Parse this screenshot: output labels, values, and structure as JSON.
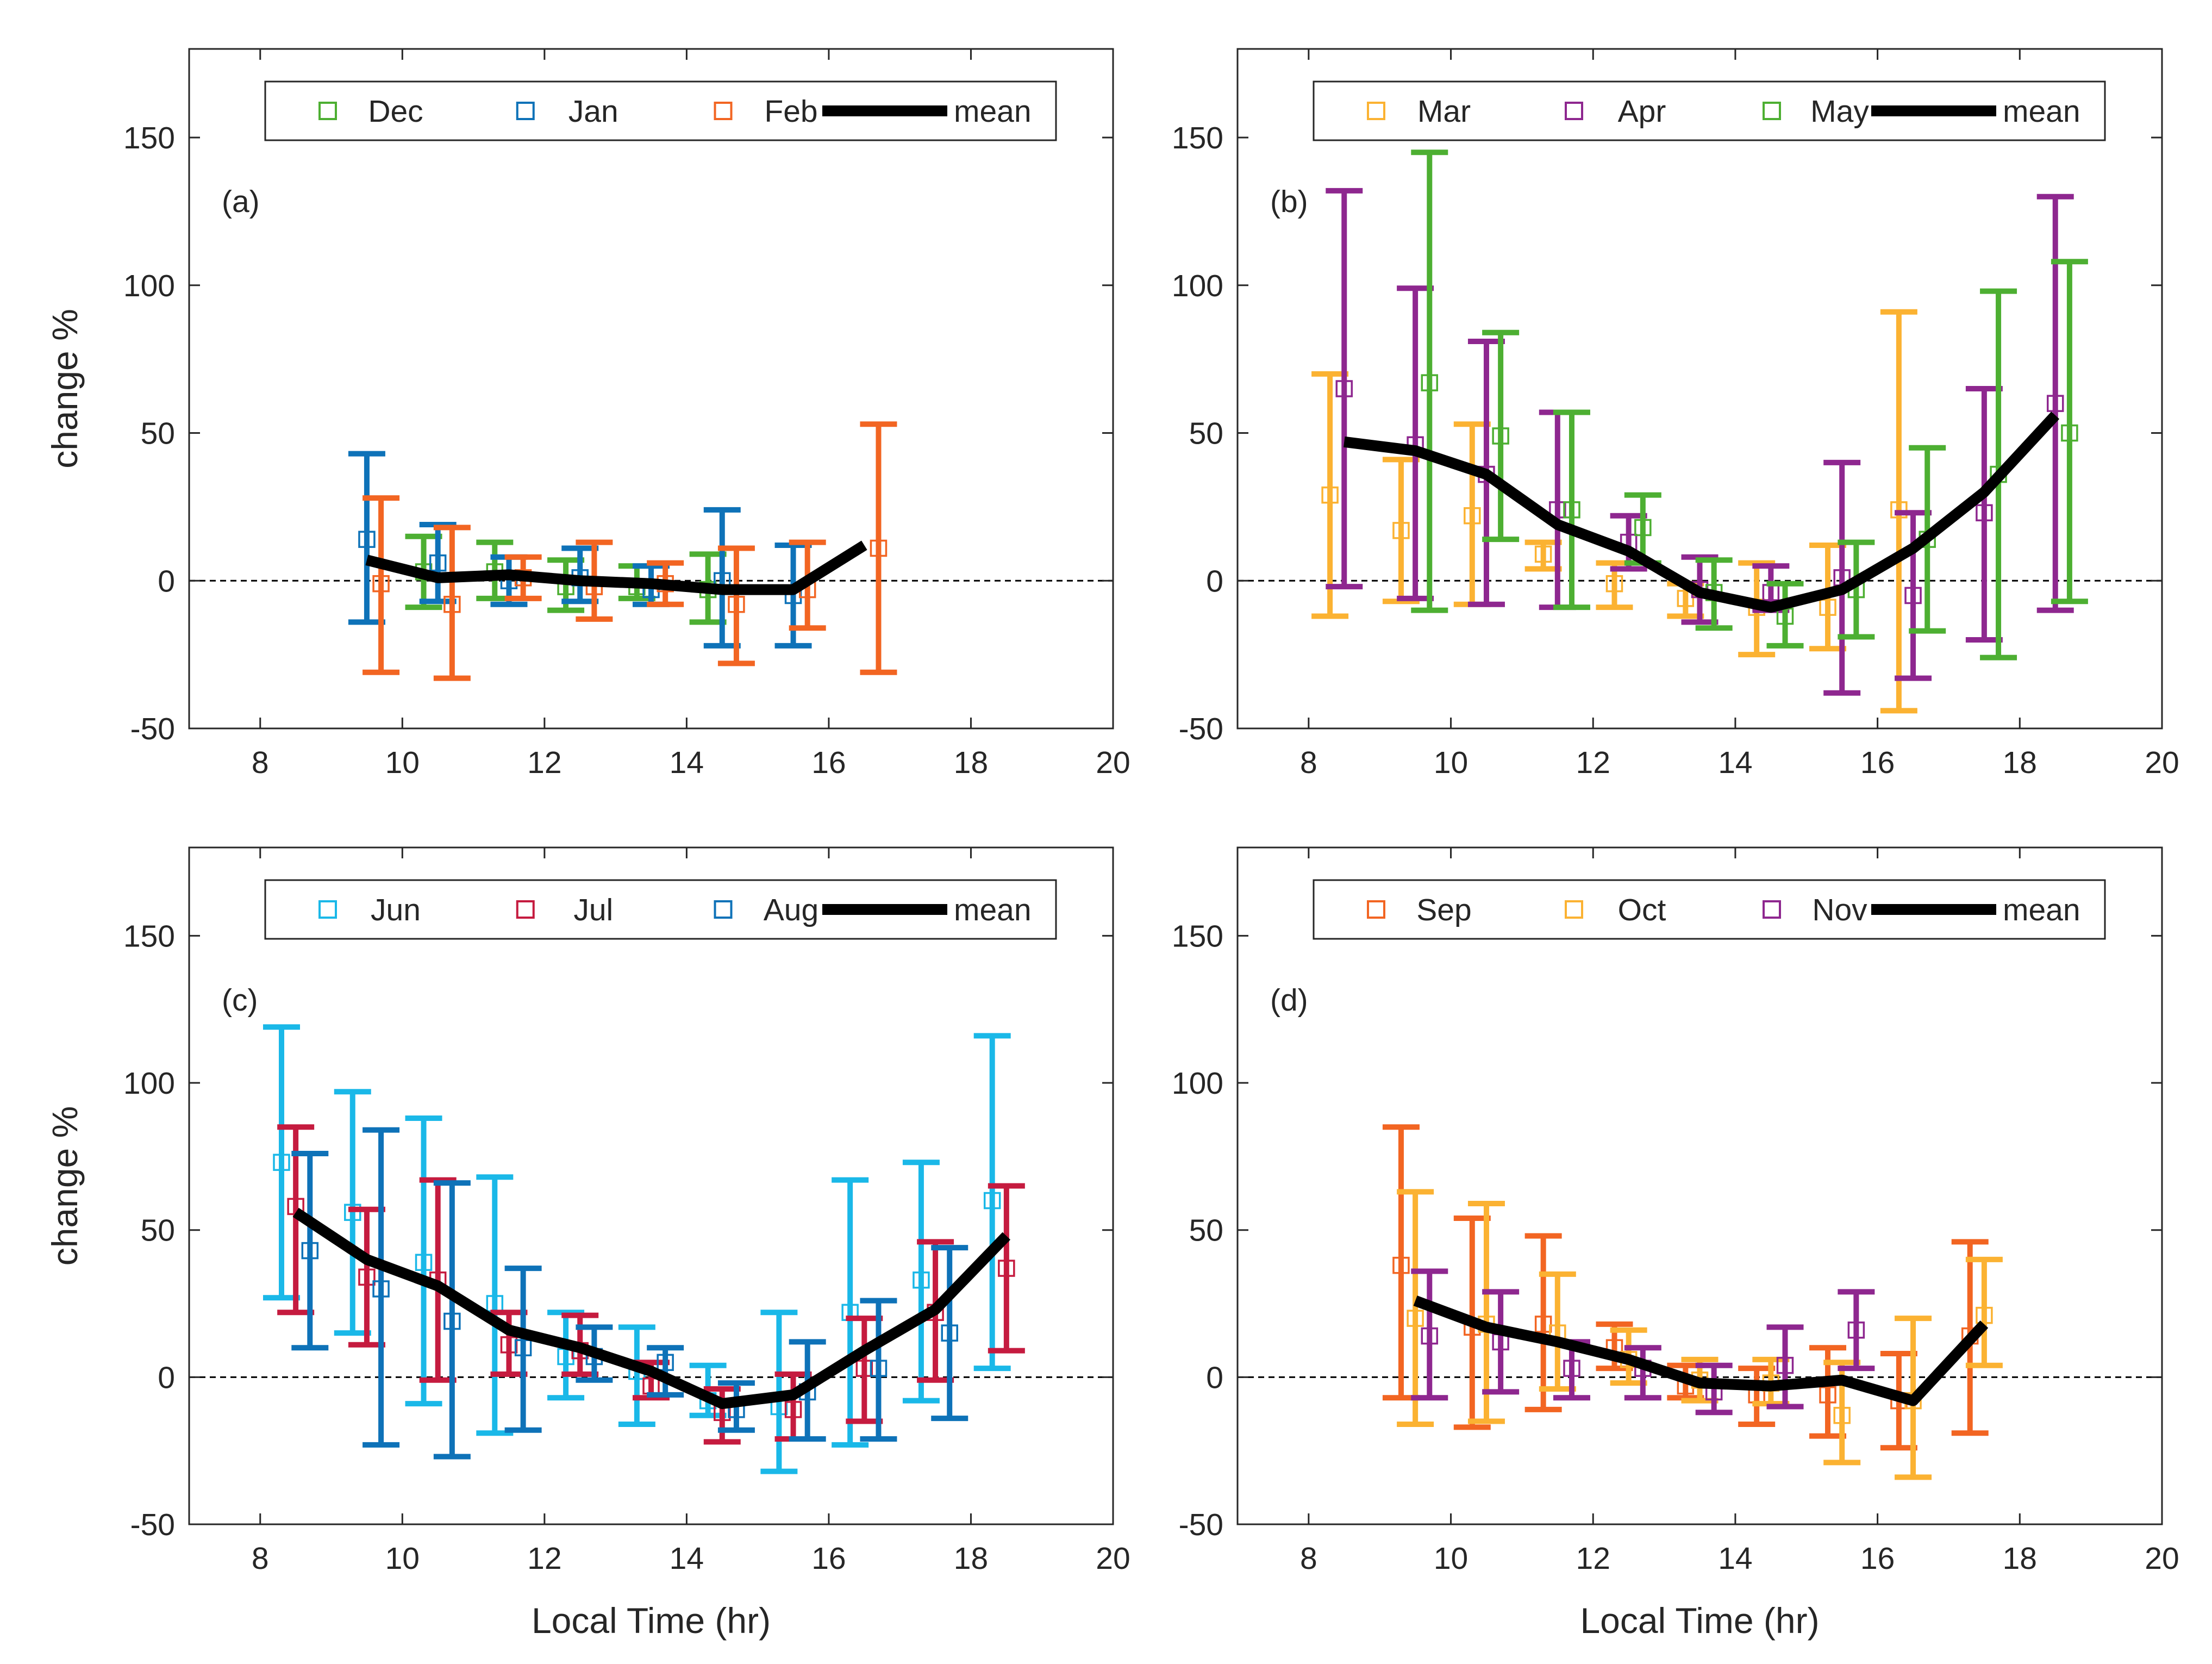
{
  "figure": {
    "colors": {
      "mean": "#000000",
      "axis": "#262626",
      "zero_line": "#000000",
      "legend_border": "#262626"
    }
  },
  "chart_data": [
    {
      "type": "errorbar",
      "panel_label": "(a)",
      "xlabel": "",
      "ylabel": "change %",
      "xlim": [
        7,
        20
      ],
      "ylim": [
        -50,
        180
      ],
      "xticks": [
        "8",
        "10",
        "12",
        "14",
        "16",
        "18",
        "20"
      ],
      "yticks": [
        "-50",
        "0",
        "50",
        "100",
        "150"
      ],
      "legend_position": "top",
      "mean_label": "mean",
      "series": [
        {
          "name": "Dec",
          "color": "#4daf32",
          "x": [
            10.3,
            11.3,
            12.3,
            13.3,
            14.3
          ],
          "y": [
            3,
            3,
            -2,
            -2,
            -3
          ],
          "lower": [
            -9,
            -6,
            -10,
            -6,
            -14
          ],
          "upper": [
            15,
            13,
            7,
            5,
            9
          ]
        },
        {
          "name": "Jan",
          "color": "#0e72b8",
          "x": [
            9.5,
            10.5,
            11.5,
            12.5,
            13.5,
            14.5,
            15.5
          ],
          "y": [
            14,
            6,
            0,
            1,
            -3,
            0,
            -5
          ],
          "lower": [
            -14,
            -7,
            -8,
            -7,
            -8,
            -22,
            -22
          ],
          "upper": [
            43,
            19,
            8,
            11,
            5,
            24,
            12
          ]
        },
        {
          "name": "Feb",
          "color": "#f26522",
          "x": [
            9.7,
            10.7,
            11.7,
            12.7,
            13.7,
            14.7,
            15.7,
            16.7
          ],
          "y": [
            -1,
            -8,
            1,
            -2,
            -1,
            -8,
            -3,
            11
          ],
          "lower": [
            -31,
            -33,
            -6,
            -13,
            -8,
            -28,
            -16,
            -31
          ],
          "upper": [
            28,
            18,
            8,
            13,
            6,
            11,
            13,
            53
          ]
        }
      ],
      "mean": {
        "x": [
          9.5,
          10.5,
          11.5,
          12.5,
          13.5,
          14.5,
          15.5,
          16.5
        ],
        "y": [
          7,
          1,
          2,
          0,
          -1,
          -3,
          -3,
          12
        ]
      }
    },
    {
      "type": "errorbar",
      "panel_label": "(b)",
      "xlabel": "",
      "ylabel": "",
      "xlim": [
        7,
        20
      ],
      "ylim": [
        -50,
        180
      ],
      "xticks": [
        "8",
        "10",
        "12",
        "14",
        "16",
        "18",
        "20"
      ],
      "yticks": [
        "-50",
        "0",
        "50",
        "100",
        "150"
      ],
      "legend_position": "top",
      "mean_label": "mean",
      "series": [
        {
          "name": "Mar",
          "color": "#fbb232",
          "x": [
            8.3,
            9.3,
            10.3,
            11.3,
            12.3,
            13.3,
            14.3,
            15.3,
            16.3
          ],
          "y": [
            29,
            17,
            22,
            9,
            -1,
            -6,
            -9,
            -9,
            24
          ],
          "lower": [
            -12,
            -7,
            -8,
            4,
            -9,
            -12,
            -25,
            -23,
            -44
          ],
          "upper": [
            70,
            41,
            53,
            13,
            6,
            -1,
            6,
            12,
            91
          ]
        },
        {
          "name": "Apr",
          "color": "#8e278f",
          "x": [
            8.5,
            9.5,
            10.5,
            11.5,
            12.5,
            13.5,
            14.5,
            15.5,
            16.5,
            17.5,
            18.5
          ],
          "y": [
            65,
            46,
            36,
            24,
            13,
            -3,
            -4,
            1,
            -5,
            23,
            60
          ],
          "lower": [
            -2,
            -6,
            -8,
            -9,
            4,
            -14,
            -10,
            -38,
            -33,
            -20,
            -10
          ],
          "upper": [
            132,
            99,
            81,
            57,
            22,
            8,
            5,
            40,
            23,
            65,
            130
          ]
        },
        {
          "name": "May",
          "color": "#4daf32",
          "x": [
            9.7,
            10.7,
            11.7,
            12.7,
            13.7,
            14.7,
            15.7,
            16.7,
            17.7,
            18.7
          ],
          "y": [
            67,
            49,
            24,
            18,
            -4,
            -12,
            -3,
            14,
            36,
            50
          ],
          "lower": [
            -10,
            14,
            -9,
            6,
            -16,
            -22,
            -19,
            -17,
            -26,
            -7
          ],
          "upper": [
            145,
            84,
            57,
            29,
            7,
            -1,
            13,
            45,
            98,
            108
          ]
        }
      ],
      "mean": {
        "x": [
          8.5,
          9.5,
          10.5,
          11.5,
          12.5,
          13.5,
          14.5,
          15.5,
          16.5,
          17.5,
          18.5
        ],
        "y": [
          47,
          44,
          36,
          19,
          10,
          -4,
          -9,
          -3,
          11,
          30,
          56
        ]
      }
    },
    {
      "type": "errorbar",
      "panel_label": "(c)",
      "xlabel": "Local Time (hr)",
      "ylabel": "change %",
      "xlim": [
        7,
        20
      ],
      "ylim": [
        -50,
        180
      ],
      "xticks": [
        "8",
        "10",
        "12",
        "14",
        "16",
        "18",
        "20"
      ],
      "yticks": [
        "-50",
        "0",
        "50",
        "100",
        "150"
      ],
      "legend_position": "top",
      "mean_label": "mean",
      "series": [
        {
          "name": "Jun",
          "color": "#1ab8e8",
          "x": [
            8.3,
            9.3,
            10.3,
            11.3,
            12.3,
            13.3,
            14.3,
            15.3,
            16.3,
            17.3,
            18.3
          ],
          "y": [
            73,
            56,
            39,
            25,
            7,
            2,
            -8,
            -10,
            22,
            33,
            60
          ],
          "lower": [
            27,
            15,
            -9,
            -19,
            -7,
            -16,
            -13,
            -32,
            -23,
            -8,
            3
          ],
          "upper": [
            119,
            97,
            88,
            68,
            22,
            17,
            4,
            22,
            67,
            73,
            116
          ]
        },
        {
          "name": "Jul",
          "color": "#c51b3f",
          "x": [
            8.5,
            9.5,
            10.5,
            11.5,
            12.5,
            13.5,
            14.5,
            15.5,
            16.5,
            17.5,
            18.5
          ],
          "y": [
            58,
            34,
            33,
            11,
            9,
            -3,
            -12,
            -11,
            3,
            22,
            37
          ],
          "lower": [
            22,
            11,
            -1,
            1,
            1,
            -7,
            -22,
            -21,
            -15,
            -1,
            9
          ],
          "upper": [
            85,
            57,
            67,
            22,
            21,
            5,
            -4,
            1,
            20,
            46,
            65
          ]
        },
        {
          "name": "Aug",
          "color": "#0e72b8",
          "x": [
            8.7,
            9.7,
            10.7,
            11.7,
            12.7,
            13.7,
            14.7,
            15.7,
            16.7,
            17.7
          ],
          "y": [
            43,
            30,
            19,
            10,
            7,
            5,
            -11,
            -5,
            3,
            15
          ],
          "lower": [
            10,
            -23,
            -27,
            -18,
            -1,
            -6,
            -18,
            -21,
            -21,
            -14
          ],
          "upper": [
            76,
            84,
            66,
            37,
            17,
            10,
            -2,
            12,
            26,
            44
          ]
        }
      ],
      "mean": {
        "x": [
          8.5,
          9.5,
          10.5,
          11.5,
          12.5,
          13.5,
          14.5,
          15.5,
          16.5,
          17.5,
          18.5
        ],
        "y": [
          56,
          40,
          31,
          16,
          10,
          2,
          -9,
          -6,
          9,
          23,
          48
        ]
      }
    },
    {
      "type": "errorbar",
      "panel_label": "(d)",
      "xlabel": "Local Time (hr)",
      "ylabel": "",
      "xlim": [
        7,
        20
      ],
      "ylim": [
        -50,
        180
      ],
      "xticks": [
        "8",
        "10",
        "12",
        "14",
        "16",
        "18",
        "20"
      ],
      "yticks": [
        "-50",
        "0",
        "50",
        "100",
        "150"
      ],
      "legend_position": "top",
      "mean_label": "mean",
      "series": [
        {
          "name": "Sep",
          "color": "#f26522",
          "x": [
            9.3,
            10.3,
            11.3,
            12.3,
            13.3,
            14.3,
            15.3,
            16.3,
            17.3
          ],
          "y": [
            38,
            17,
            18,
            10,
            -3,
            -6,
            -6,
            -8,
            14
          ],
          "lower": [
            -7,
            -17,
            -11,
            3,
            -7,
            -16,
            -20,
            -24,
            -19
          ],
          "upper": [
            85,
            54,
            48,
            18,
            4,
            3,
            10,
            8,
            46
          ]
        },
        {
          "name": "Oct",
          "color": "#fbb232",
          "x": [
            9.5,
            10.5,
            11.5,
            12.5,
            13.5,
            14.5,
            15.5,
            16.5,
            17.5
          ],
          "y": [
            20,
            18,
            15,
            6,
            -1,
            -2,
            -13,
            -8,
            21
          ],
          "lower": [
            -16,
            -15,
            -4,
            -2,
            -8,
            -9,
            -29,
            -34,
            4
          ],
          "upper": [
            63,
            59,
            35,
            16,
            6,
            6,
            5,
            20,
            40
          ]
        },
        {
          "name": "Nov",
          "color": "#8e278f",
          "x": [
            9.7,
            10.7,
            11.7,
            12.7,
            13.7,
            14.7,
            15.7
          ],
          "y": [
            14,
            12,
            3,
            3,
            -5,
            4,
            16
          ],
          "lower": [
            -7,
            -5,
            -7,
            -7,
            -12,
            -10,
            3
          ],
          "upper": [
            36,
            29,
            12,
            10,
            4,
            17,
            29
          ]
        }
      ],
      "mean": {
        "x": [
          9.5,
          10.5,
          11.5,
          12.5,
          13.5,
          14.5,
          15.5,
          16.5,
          17.5
        ],
        "y": [
          26,
          17,
          12,
          6,
          -2,
          -3,
          -1,
          -8,
          18
        ]
      }
    }
  ]
}
